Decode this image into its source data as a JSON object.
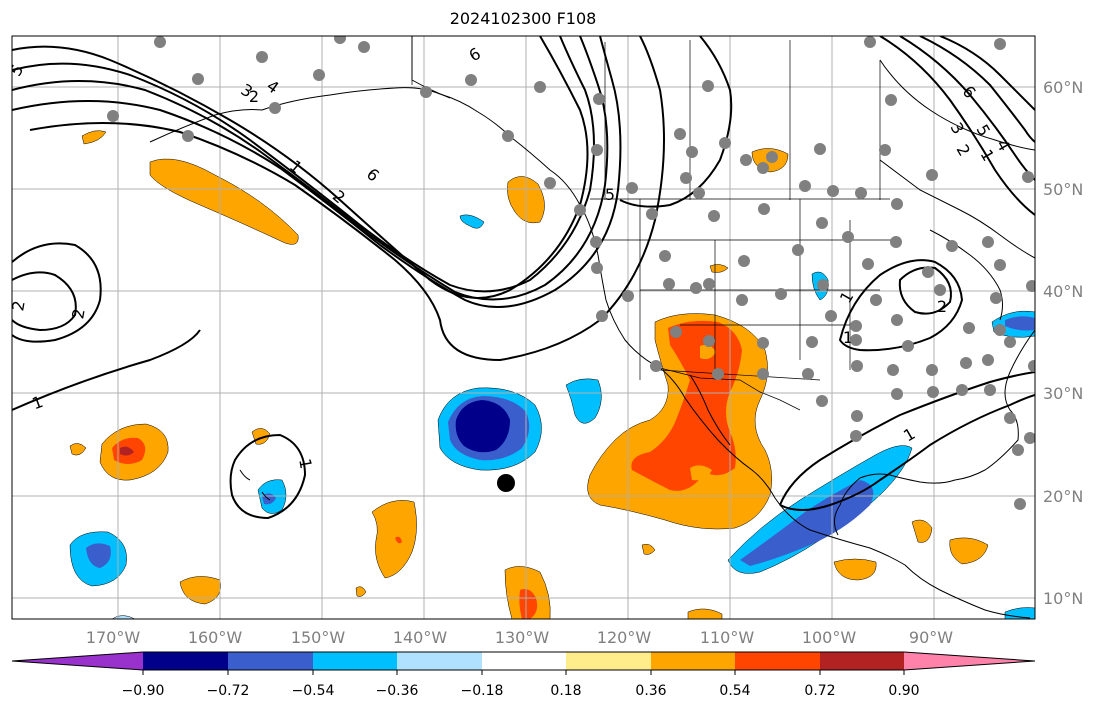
{
  "title": "2024102300 F108",
  "lon_ticks": [
    "170°W",
    "160°W",
    "150°W",
    "140°W",
    "130°W",
    "120°W",
    "110°W",
    "100°W",
    "90°W"
  ],
  "lat_ticks": [
    "60°N",
    "50°N",
    "40°N",
    "30°N",
    "20°N",
    "10°N"
  ],
  "colorbar": {
    "tick_labels": [
      "−0.90",
      "−0.72",
      "−0.54",
      "−0.36",
      "−0.18",
      "0.18",
      "0.36",
      "0.54",
      "0.72",
      "0.90"
    ],
    "colors": [
      "#9932cc",
      "#00008b",
      "#3a5fcd",
      "#00bfff",
      "#b0e2ff",
      "#ffffff",
      "#ffec8b",
      "#ffa500",
      "#ff4500",
      "#b22222",
      "#ff82ab"
    ]
  },
  "contour_labels": [
    "6",
    "5",
    "4",
    "3",
    "2",
    "1",
    "6",
    "2",
    "1",
    "2",
    "2",
    "1",
    "1",
    "5",
    "1",
    "2",
    "6",
    "5",
    "4",
    "3",
    "2",
    "1",
    "1"
  ],
  "colors": {
    "station": "#808080",
    "marker": "#000000",
    "coast": "#000000",
    "grid": "#b0b0b0"
  }
}
